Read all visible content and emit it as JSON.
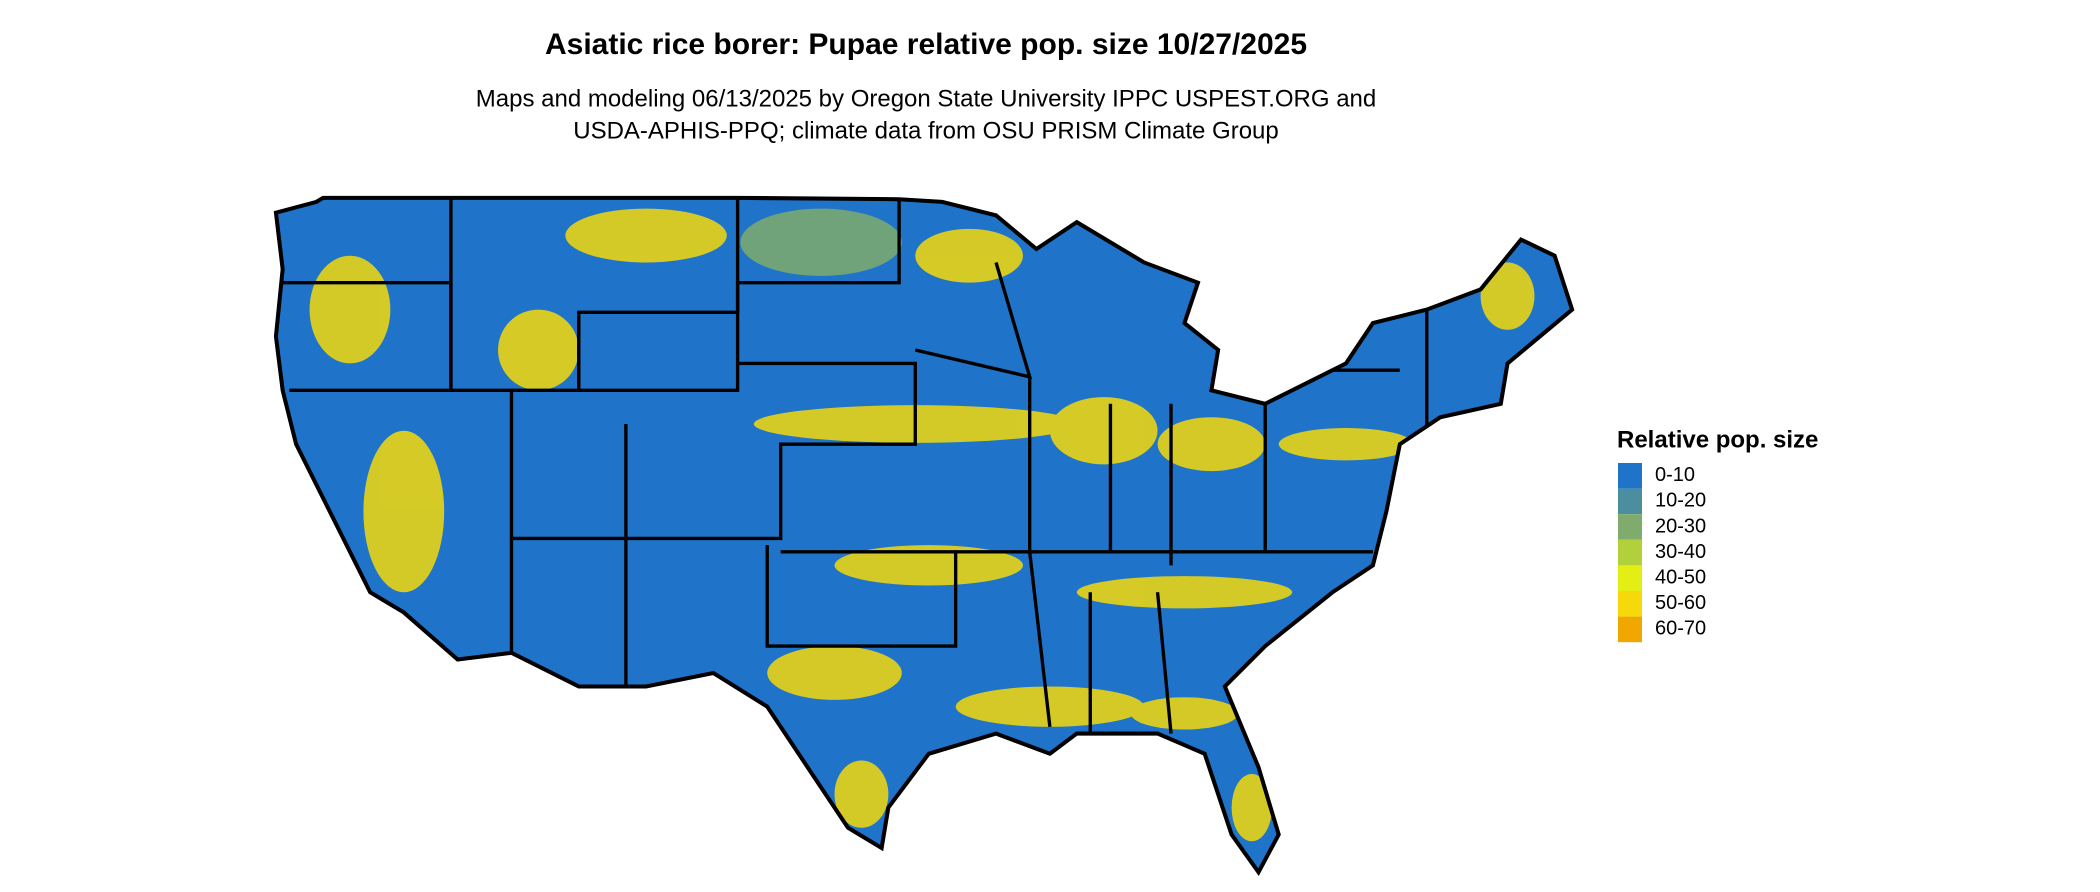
{
  "title": "Asiatic rice borer: Pupae relative pop. size 10/27/2025",
  "subtitle": [
    "Maps and modeling 06/13/2025 by Oregon State University IPPC USPEST.ORG and",
    "USDA-APHIS-PPQ; climate data from OSU PRISM Climate Group"
  ],
  "legend": {
    "title": "Relative pop. size",
    "items": [
      {
        "label": "0-10",
        "color": "#1f74c9"
      },
      {
        "label": "10-20",
        "color": "#4a8ea0"
      },
      {
        "label": "20-30",
        "color": "#7fac6c"
      },
      {
        "label": "30-40",
        "color": "#b2cf3c"
      },
      {
        "label": "40-50",
        "color": "#e3ee14"
      },
      {
        "label": "50-60",
        "color": "#f5d90a"
      },
      {
        "label": "60-70",
        "color": "#f0a800"
      }
    ]
  }
}
